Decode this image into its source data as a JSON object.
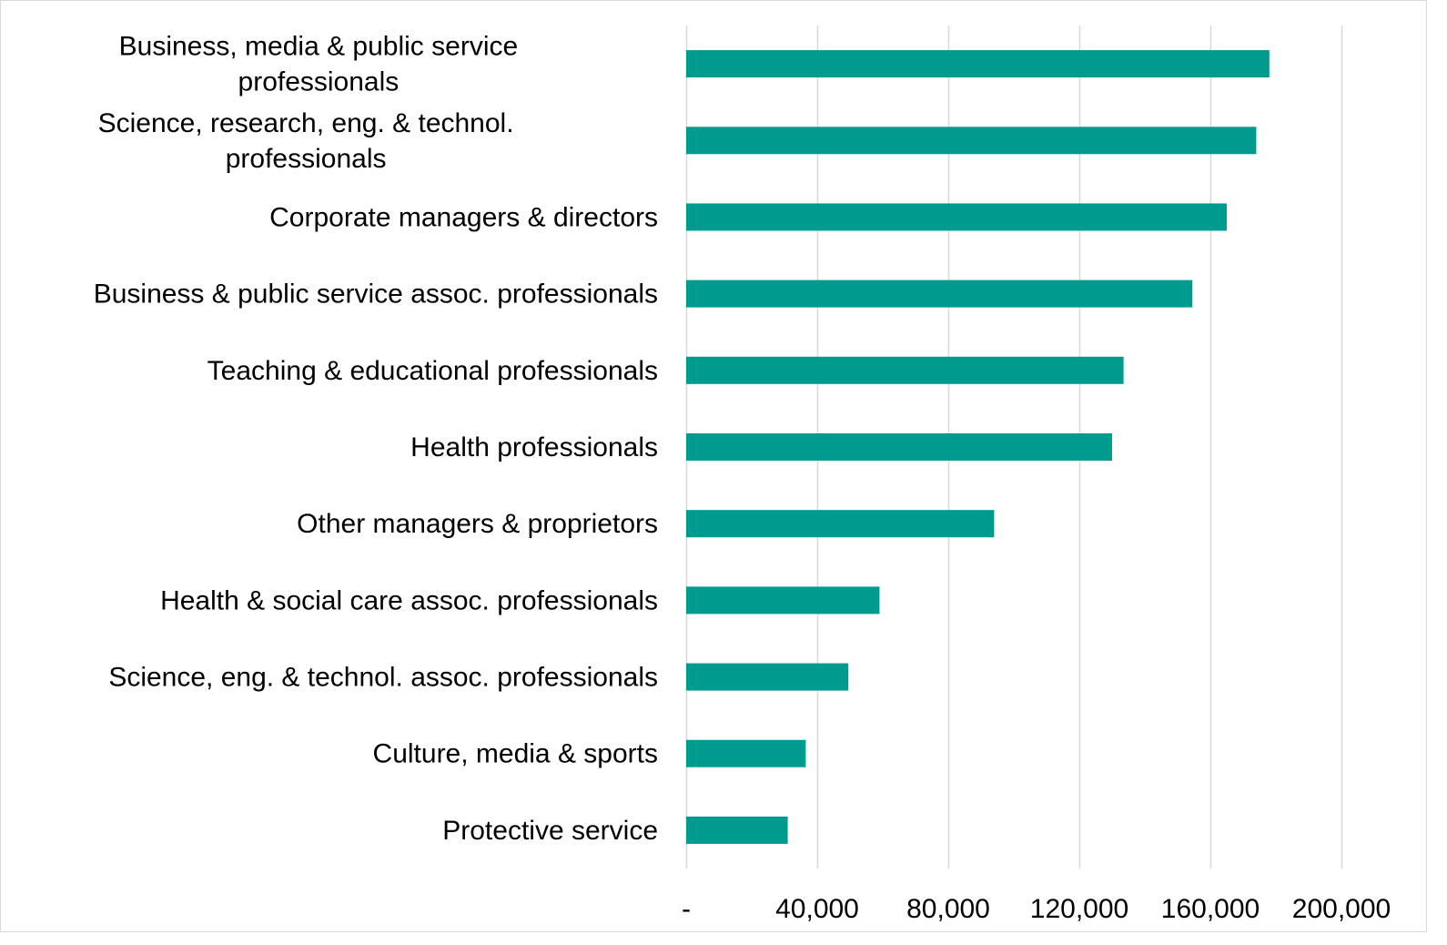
{
  "chart_data": {
    "type": "bar",
    "orientation": "horizontal",
    "categories": [
      [
        "Business, media & public service",
        "professionals"
      ],
      [
        "Science, research, eng. & technol.",
        "professionals"
      ],
      [
        "Corporate managers & directors"
      ],
      [
        "Business & public service assoc. professionals"
      ],
      [
        "Teaching & educational professionals"
      ],
      [
        "Health professionals"
      ],
      [
        "Other managers & proprietors"
      ],
      [
        "Health & social care assoc. professionals"
      ],
      [
        "Science, eng. & technol. assoc. professionals"
      ],
      [
        "Culture, media & sports"
      ],
      [
        "Protective service"
      ]
    ],
    "values": [
      178000,
      174000,
      165000,
      154500,
      133500,
      130000,
      94000,
      59000,
      49500,
      36500,
      31000
    ],
    "xlim": [
      0,
      200000
    ],
    "xticks": [
      0,
      40000,
      80000,
      120000,
      160000,
      200000
    ],
    "xtick_labels": [
      "-",
      "40,000",
      "80,000",
      "120,000",
      "160,000",
      "200,000"
    ],
    "title": "",
    "xlabel": "",
    "ylabel": "",
    "grid": "vertical",
    "bar_color": "#009B8F",
    "grid_color": "#D9D9D9"
  }
}
